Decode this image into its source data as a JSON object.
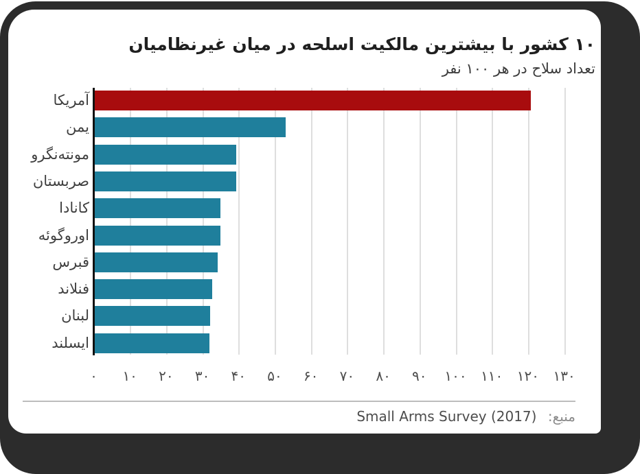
{
  "page": {
    "frame_color": "#2c2c2c",
    "canvas_color": "#ffffff"
  },
  "source": {
    "label": "منبع:",
    "text": "Small Arms Survey (2017)"
  },
  "chart_data": {
    "type": "bar",
    "orientation": "horizontal",
    "title": "۱۰ کشور با بیشترین مالکیت اسلحه در میان غیرنظامیان",
    "subtitle": "تعداد سلاح در هر ۱۰۰ نفر",
    "categories": [
      "آمریکا",
      "یمن",
      "مونته‌نگرو",
      "صربستان",
      "کانادا",
      "اوروگوئه",
      "قبرس",
      "فنلاند",
      "لبنان",
      "ایسلند"
    ],
    "values": [
      120.5,
      52.8,
      39.1,
      39.1,
      34.7,
      34.7,
      34,
      32.4,
      31.9,
      31.7
    ],
    "xlim": [
      0,
      130
    ],
    "tick_step": 10,
    "tick_labels": [
      "۰",
      "۱۰",
      "۲۰",
      "۳۰",
      "۴۰",
      "۵۰",
      "۶۰",
      "۷۰",
      "۸۰",
      "۹۰",
      "۱۰۰",
      "۱۱۰",
      "۱۲۰",
      "۱۳۰"
    ],
    "grid": true,
    "legend": false,
    "highlight_index": 0,
    "colors": {
      "highlight_bar": "#a80c0e",
      "bar": "#1f7f9c",
      "gridline": "#dedede",
      "axis": "#111111"
    }
  }
}
